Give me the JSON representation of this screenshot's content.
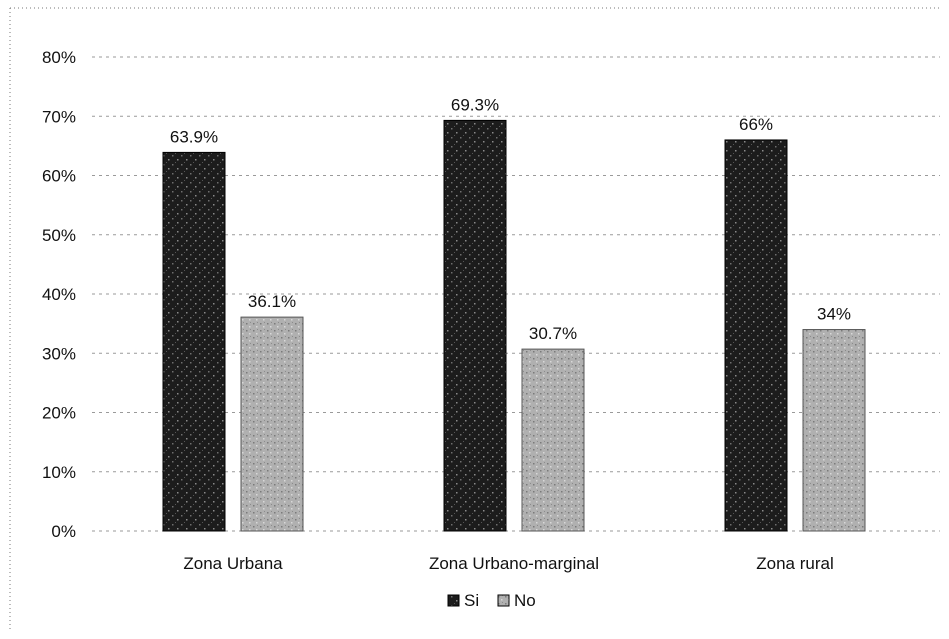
{
  "chart_data": {
    "type": "bar",
    "categories": [
      "Zona Urbana",
      "Zona Urbano-marginal",
      "Zona rural"
    ],
    "series": [
      {
        "name": "Si",
        "values": [
          63.9,
          69.3,
          66
        ],
        "labels": [
          "63.9%",
          "69.3%",
          "66%"
        ],
        "color": "#1a1a1a"
      },
      {
        "name": "No",
        "values": [
          36.1,
          30.7,
          34
        ],
        "labels": [
          "36.1%",
          "30.7%",
          "34%"
        ],
        "color": "#a9a9a9"
      }
    ],
    "y_ticks": [
      "0%",
      "10%",
      "20%",
      "30%",
      "40%",
      "50%",
      "60%",
      "70%",
      "80%"
    ],
    "ylim": [
      0,
      80
    ],
    "grid": true,
    "legend_position": "bottom"
  }
}
